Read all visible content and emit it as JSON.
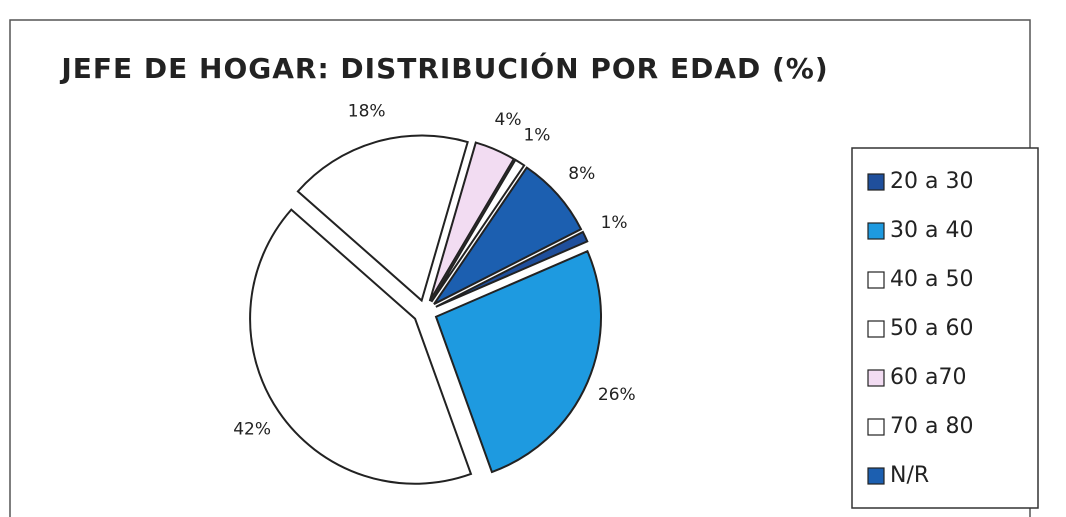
{
  "chart_data": {
    "type": "pie",
    "title": "JEFE DE HOGAR: DISTRIBUCIÓN POR EDAD (%)",
    "categories": [
      "20 a 30",
      "30 a 40",
      "40 a 50",
      "50 a 60",
      "60 a70",
      "70 a 80",
      "N/R"
    ],
    "values": [
      1,
      26,
      42,
      18,
      4,
      1,
      8
    ],
    "value_labels": [
      "1%",
      "26%",
      "42%",
      "18%",
      "4%",
      "1%",
      "8%"
    ],
    "colors": [
      "#1f4f9c",
      "#1e9ae0",
      "#ffffff",
      "#ffffff",
      "#f2dcf2",
      "#ffffff",
      "#1c5fb0"
    ],
    "legend": "right"
  }
}
